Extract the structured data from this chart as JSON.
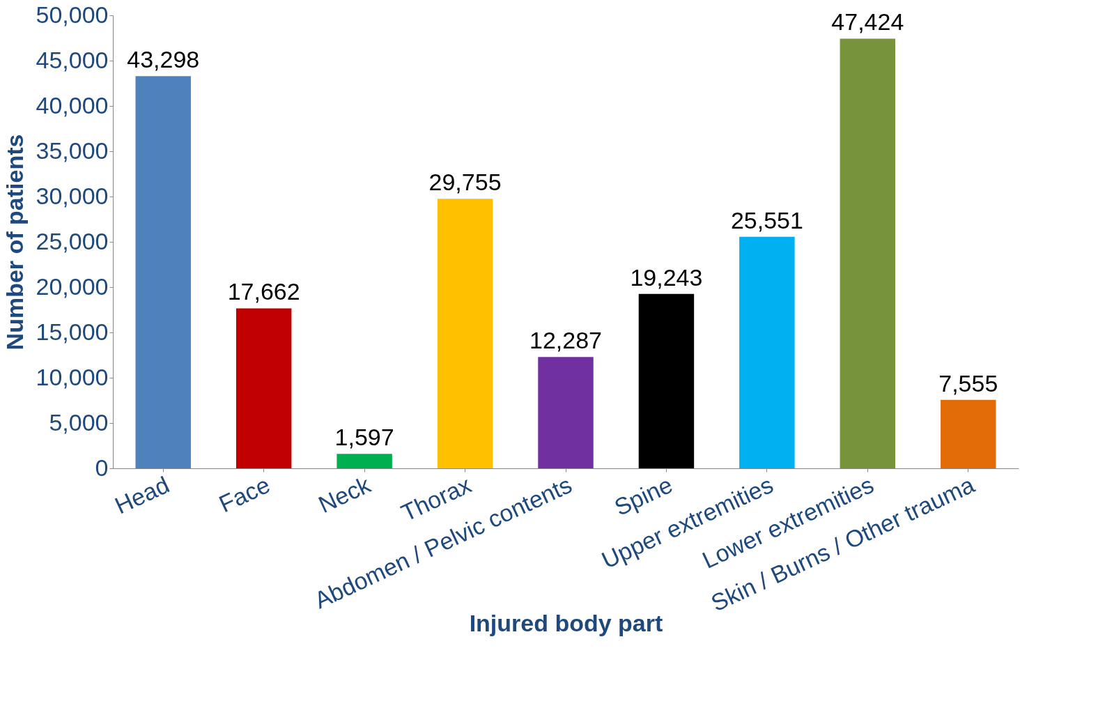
{
  "chart_data": {
    "type": "bar",
    "xlabel": "Injured body part",
    "ylabel": "Number of patients",
    "categories": [
      "Head",
      "Face",
      "Neck",
      "Thorax",
      "Abdomen / Pelvic contents",
      "Spine",
      "Upper extremities",
      "Lower extremities",
      "Skin / Burns / Other trauma"
    ],
    "values": [
      43298,
      17662,
      1597,
      29755,
      12287,
      19243,
      25551,
      47424,
      7555
    ],
    "value_labels": [
      "43,298",
      "17,662",
      "1,597",
      "29,755",
      "12,287",
      "19,243",
      "25,551",
      "47,424",
      "7,555"
    ],
    "colors": [
      "#4f81bd",
      "#c00000",
      "#00b050",
      "#ffc000",
      "#7030a0",
      "#000000",
      "#00b0f0",
      "#77933c",
      "#e36c09"
    ],
    "ylim": [
      0,
      50000
    ],
    "yticks": [
      0,
      {
        "value": 5000,
        "label": "5,000"
      },
      {
        "value": 10000,
        "label": "10,000"
      },
      {
        "value": 15000,
        "label": "15,000"
      },
      {
        "value": 20000,
        "label": "20,000"
      },
      {
        "value": 25000,
        "label": "25,000"
      },
      {
        "value": 30000,
        "label": "30,000"
      },
      {
        "value": 35000,
        "label": "35,000"
      },
      {
        "value": 40000,
        "label": "40,000"
      },
      {
        "value": 45000,
        "label": "45,000"
      },
      {
        "value": 50000,
        "label": "50,000"
      }
    ],
    "grid": false
  }
}
